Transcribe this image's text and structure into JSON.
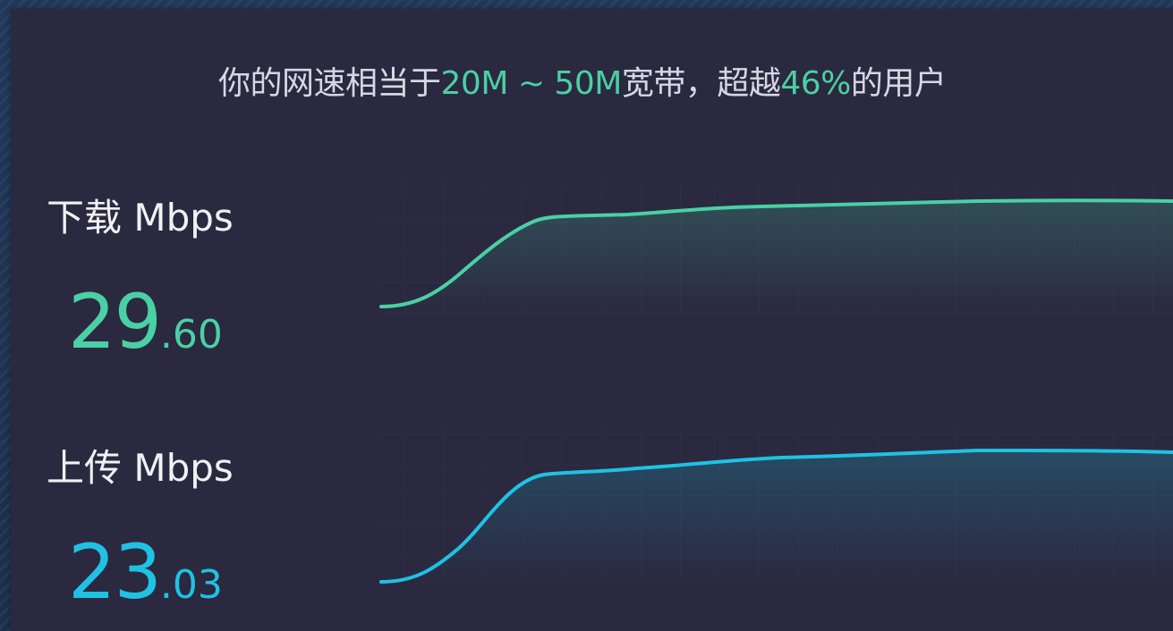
{
  "summary": {
    "prefix": "你的网速相当于",
    "range": "20M ~ 50M",
    "middle": "宽带，超越",
    "percent": "46%",
    "suffix": "的用户"
  },
  "download": {
    "label": "下载 Mbps",
    "value_int": "29",
    "value_dec": ".60",
    "color": "#4ad0a4"
  },
  "upload": {
    "label": "上传 Mbps",
    "value_int": "23",
    "value_dec": ".03",
    "color": "#1fc2e2"
  }
}
